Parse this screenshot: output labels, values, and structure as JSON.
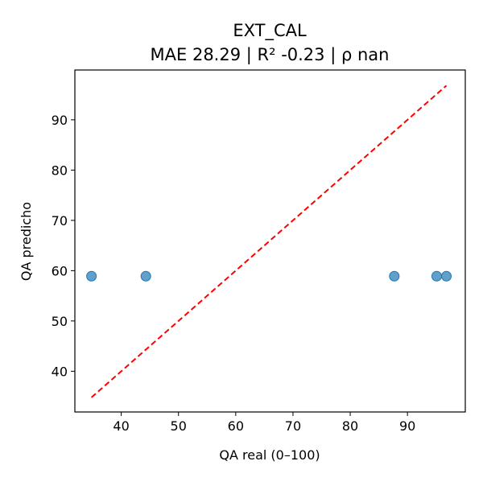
{
  "chart_data": {
    "type": "scatter",
    "title": "EXT_CAL",
    "subtitle": "MAE 28.29 | R² -0.23 | ρ nan",
    "xlabel": "QA real (0–100)",
    "ylabel": "QA predicho",
    "xlim": [
      31.9,
      100.1
    ],
    "ylim": [
      31.9,
      99.9
    ],
    "xticks": [
      40,
      50,
      60,
      70,
      80,
      90
    ],
    "yticks": [
      40,
      50,
      60,
      70,
      80,
      90
    ],
    "grid": false,
    "series": [
      {
        "points": [
          {
            "x": 34.8,
            "y": 58.9
          },
          {
            "x": 44.3,
            "y": 58.9
          },
          {
            "x": 87.7,
            "y": 58.9
          },
          {
            "x": 95.1,
            "y": 58.9
          },
          {
            "x": 96.8,
            "y": 58.9
          }
        ],
        "color": "#1f77b4"
      }
    ],
    "reference_line": {
      "style": "dashed",
      "color": "#ff0000",
      "from": [
        34.8,
        34.8
      ],
      "to": [
        96.8,
        96.8
      ]
    }
  }
}
